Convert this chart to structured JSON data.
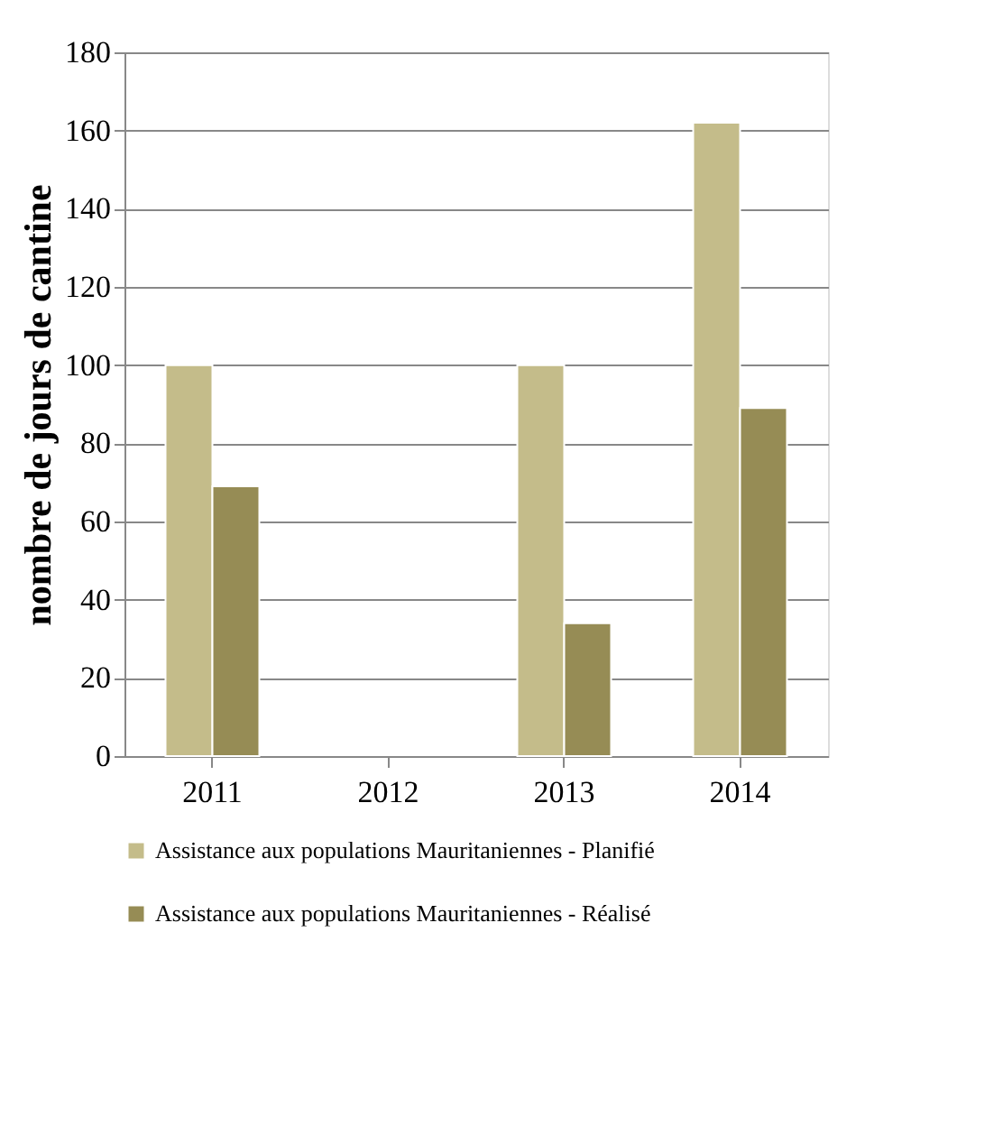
{
  "chart_data": {
    "type": "bar",
    "ylabel": "nombre de jours de cantine",
    "categories": [
      "2011",
      "2012",
      "2013",
      "2014"
    ],
    "series": [
      {
        "name": "Assistance aux populations Mauritaniennes - Planifié",
        "color": "#c4bc8a",
        "values": [
          100,
          null,
          100,
          162
        ]
      },
      {
        "name": "Assistance aux populations Mauritaniennes - Réalisé",
        "color": "#968c55",
        "values": [
          69,
          null,
          34,
          89
        ]
      }
    ],
    "ylim": [
      0,
      180
    ],
    "yticks": [
      0,
      20,
      40,
      60,
      80,
      100,
      120,
      140,
      160,
      180
    ],
    "grid": "y",
    "legend": "bottom"
  }
}
